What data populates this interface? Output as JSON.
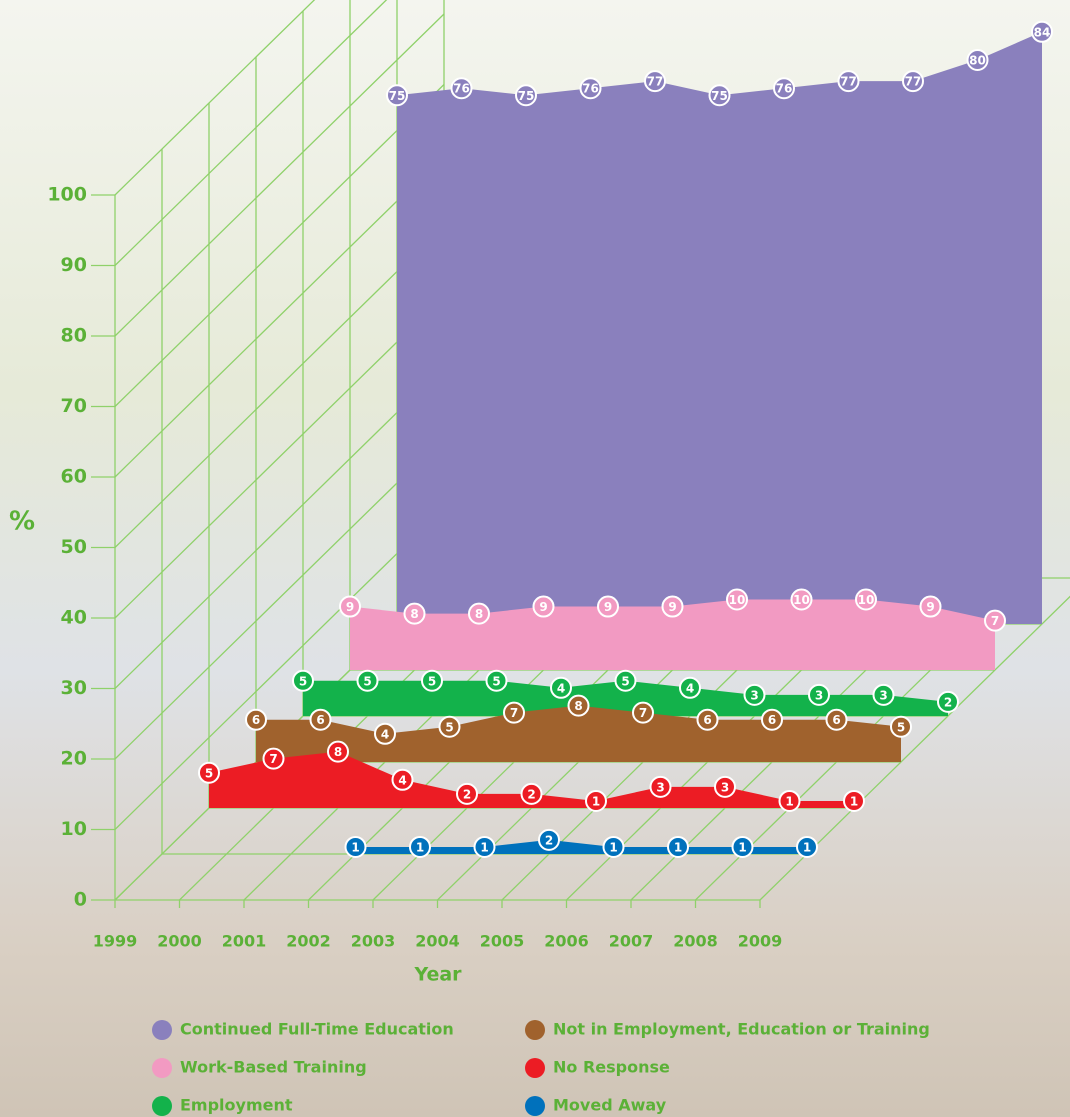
{
  "chart_data": {
    "type": "area3d",
    "x_label": "Year",
    "y_label": "%",
    "categories": [
      "1999",
      "2000",
      "2001",
      "2002",
      "2003",
      "2004",
      "2005",
      "2006",
      "2007",
      "2008",
      "2009"
    ],
    "ylim": [
      0,
      100
    ],
    "yticks": [
      0,
      10,
      20,
      30,
      40,
      50,
      60,
      70,
      80,
      90,
      100
    ],
    "series": [
      {
        "name": "Continued Full-Time Education",
        "color": "#8a80bd",
        "values": [
          75,
          76,
          75,
          76,
          77,
          75,
          76,
          77,
          77,
          80,
          84
        ]
      },
      {
        "name": "Work-Based Training",
        "color": "#f29ac2",
        "values": [
          9,
          8,
          8,
          9,
          9,
          9,
          10,
          10,
          10,
          9,
          7
        ]
      },
      {
        "name": "Employment",
        "color": "#13b24b",
        "values": [
          5,
          5,
          5,
          5,
          4,
          5,
          4,
          3,
          3,
          3,
          2
        ]
      },
      {
        "name": "Not in Employment, Education or Training",
        "color": "#a0622d",
        "values": [
          6,
          6,
          4,
          5,
          7,
          8,
          7,
          6,
          6,
          6,
          5
        ]
      },
      {
        "name": "No Response",
        "color": "#ec1c24",
        "values": [
          5,
          7,
          8,
          4,
          2,
          2,
          1,
          3,
          3,
          1,
          1
        ]
      },
      {
        "name": "Moved Away",
        "color": "#0071bc",
        "values": [
          null,
          null,
          null,
          1,
          1,
          1,
          2,
          1,
          1,
          1,
          1
        ]
      }
    ]
  }
}
